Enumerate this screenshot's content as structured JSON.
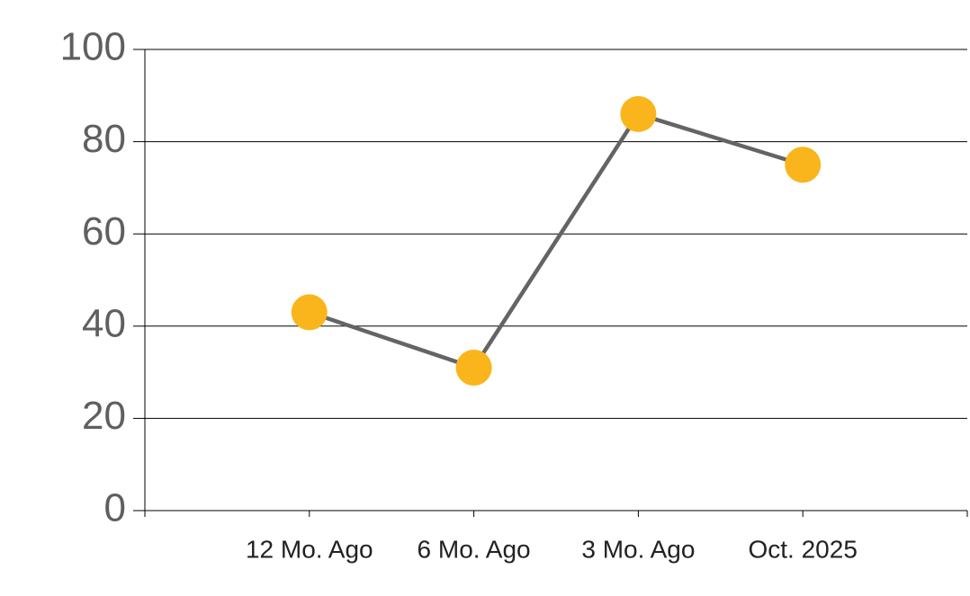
{
  "chart_data": {
    "type": "line",
    "categories": [
      "12 Mo. Ago",
      "6 Mo. Ago",
      "3 Mo. Ago",
      "Oct. 2025"
    ],
    "values": [
      43,
      31,
      86,
      75
    ],
    "line_color": "#646464",
    "marker_color": "#f9b51b",
    "ylim": [
      0,
      100
    ],
    "yticks": [
      0,
      20,
      40,
      60,
      80,
      100
    ],
    "grid": true
  }
}
